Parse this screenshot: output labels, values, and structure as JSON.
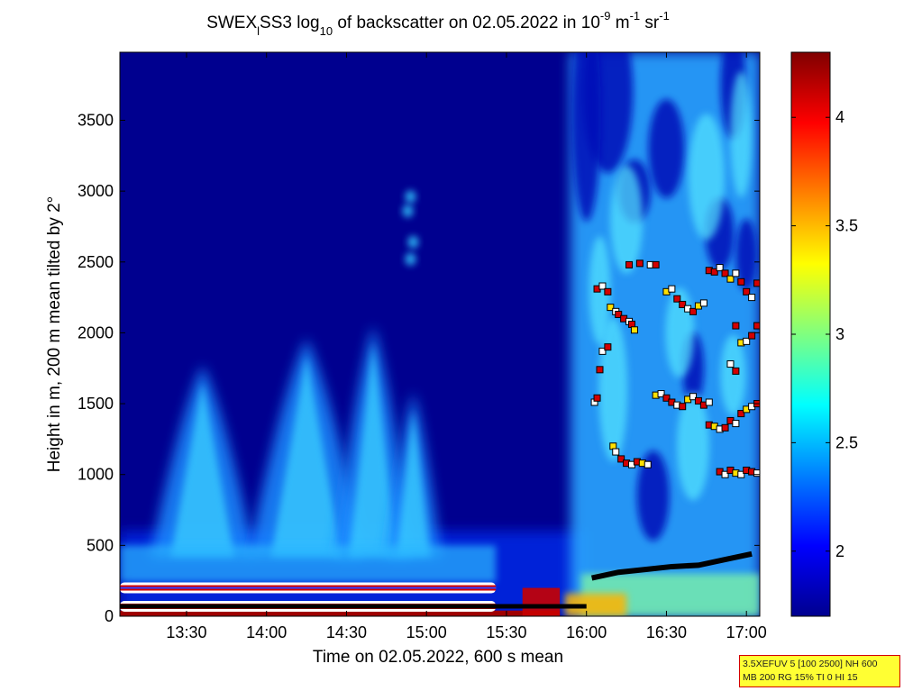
{
  "colors": {
    "background_low": "#00008f",
    "deep_blue": "#0000c8",
    "threshold_line": "#d40000",
    "info_fill": "#ffff33",
    "info_border": "#d40000",
    "marker_outline": "#000000"
  },
  "title": {
    "main": "SWEX",
    "sub1": "l",
    "mid": "SS3 log",
    "sub2": "10",
    "rest": " of backscatter on 02.05.2022 in 10",
    "sup1": "-9",
    "unit_m": " m",
    "sup2": "-1",
    "unit_sr": " sr",
    "sup3": "-1"
  },
  "info": {
    "line1": "3.5XEFUV 5 [100 2500] NH 600",
    "line2": "MB 200 RG 15% TI 0 HI 15"
  },
  "chart_data": {
    "type": "heatmap",
    "title": "SWEX_l SS3 log10 of backscatter on 02.05.2022 in 10^-9 m^-1 sr^-1",
    "xlabel": "Time on 02.05.2022, 600 s mean",
    "ylabel": "Height in m, 200 m mean tilted by 2°",
    "x_unit": "minutes of day",
    "xlim": [
      785,
      1025
    ],
    "ylim": [
      0,
      3980
    ],
    "x_ticks": [
      810,
      840,
      870,
      900,
      930,
      960,
      990,
      1020
    ],
    "x_tick_labels": [
      "13:30",
      "14:00",
      "14:30",
      "15:00",
      "15:30",
      "16:00",
      "16:30",
      "17:00"
    ],
    "y_ticks": [
      0,
      500,
      1000,
      1500,
      2000,
      2500,
      3000,
      3500
    ],
    "y_tick_labels": [
      "0",
      "500",
      "1000",
      "1500",
      "2000",
      "2500",
      "3000",
      "3500"
    ],
    "colorbar": {
      "range": [
        1.7,
        4.3
      ],
      "ticks": [
        2,
        2.5,
        3,
        3.5,
        4
      ],
      "tick_labels": [
        "2",
        "2.5",
        "3",
        "3.5",
        "4"
      ],
      "colormap": "jet"
    },
    "grid": false,
    "plumes": [
      {
        "center": 816,
        "top": 1770,
        "halfwidth": 17
      },
      {
        "center": 855,
        "top": 1960,
        "halfwidth": 19
      },
      {
        "center": 880,
        "top": 2050,
        "halfwidth": 13
      },
      {
        "center": 895,
        "top": 1580,
        "halfwidth": 9
      }
    ],
    "boundary_layer_trace": [
      [
        962,
        270
      ],
      [
        972,
        310
      ],
      [
        982,
        330
      ],
      [
        992,
        350
      ],
      [
        1002,
        360
      ],
      [
        1012,
        400
      ],
      [
        1022,
        440
      ]
    ],
    "red_threshold_lines_height": [
      200,
      70
    ],
    "red_threshold_lines_end": 926,
    "cloud_base_points": [
      [
        964,
        2310
      ],
      [
        966,
        2330
      ],
      [
        968,
        2290
      ],
      [
        969,
        2180
      ],
      [
        971,
        2150
      ],
      [
        972,
        2130
      ],
      [
        974,
        2100
      ],
      [
        976,
        2080
      ],
      [
        977,
        2060
      ],
      [
        978,
        2020
      ],
      [
        966,
        1870
      ],
      [
        968,
        1900
      ],
      [
        965,
        1740
      ],
      [
        963,
        1510
      ],
      [
        964,
        1540
      ],
      [
        970,
        1200
      ],
      [
        971,
        1160
      ],
      [
        973,
        1110
      ],
      [
        975,
        1080
      ],
      [
        977,
        1070
      ],
      [
        979,
        1090
      ],
      [
        981,
        1080
      ],
      [
        983,
        1070
      ],
      [
        976,
        2480
      ],
      [
        980,
        2490
      ],
      [
        984,
        2480
      ],
      [
        986,
        2480
      ],
      [
        990,
        2290
      ],
      [
        992,
        2310
      ],
      [
        994,
        2240
      ],
      [
        996,
        2200
      ],
      [
        998,
        2170
      ],
      [
        1000,
        2150
      ],
      [
        1002,
        2190
      ],
      [
        1004,
        2210
      ],
      [
        1006,
        2440
      ],
      [
        1008,
        2430
      ],
      [
        1010,
        2460
      ],
      [
        1012,
        2420
      ],
      [
        1014,
        2380
      ],
      [
        1016,
        2420
      ],
      [
        1018,
        2360
      ],
      [
        1020,
        2290
      ],
      [
        1022,
        2250
      ],
      [
        1024,
        2350
      ],
      [
        986,
        1560
      ],
      [
        988,
        1570
      ],
      [
        990,
        1540
      ],
      [
        992,
        1510
      ],
      [
        994,
        1490
      ],
      [
        996,
        1480
      ],
      [
        998,
        1530
      ],
      [
        1000,
        1550
      ],
      [
        1002,
        1520
      ],
      [
        1004,
        1490
      ],
      [
        1006,
        1510
      ],
      [
        1006,
        1350
      ],
      [
        1008,
        1340
      ],
      [
        1010,
        1320
      ],
      [
        1012,
        1330
      ],
      [
        1014,
        1380
      ],
      [
        1016,
        1360
      ],
      [
        1018,
        1430
      ],
      [
        1020,
        1460
      ],
      [
        1022,
        1480
      ],
      [
        1024,
        1500
      ],
      [
        1010,
        1020
      ],
      [
        1012,
        1000
      ],
      [
        1014,
        1030
      ],
      [
        1016,
        1010
      ],
      [
        1018,
        1000
      ],
      [
        1020,
        1030
      ],
      [
        1022,
        1020
      ],
      [
        1024,
        1010
      ],
      [
        1016,
        2050
      ],
      [
        1018,
        1930
      ],
      [
        1020,
        1940
      ],
      [
        1022,
        1980
      ],
      [
        1024,
        2050
      ],
      [
        1014,
        1780
      ],
      [
        1016,
        1730
      ]
    ]
  }
}
